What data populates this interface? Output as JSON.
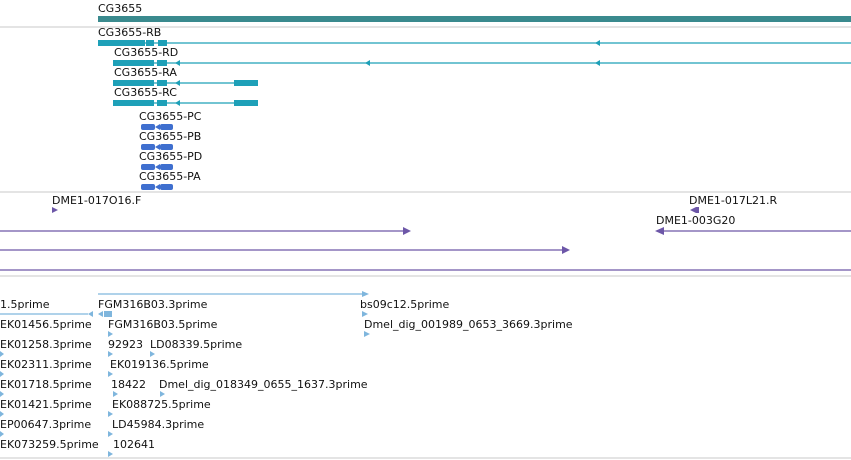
{
  "colors": {
    "gene": "#3a8a8e",
    "transcript": "#1ea0b8",
    "protein": "#3f6fcf",
    "bac": "#6d57a8",
    "est": "#7fb6dd",
    "separator": "#c9c9c9"
  },
  "tracks": {
    "gene": {
      "label": "CG3655"
    },
    "transcripts": [
      {
        "label": "CG3655-RB"
      },
      {
        "label": "CG3655-RD"
      },
      {
        "label": "CG3655-RA"
      },
      {
        "label": "CG3655-RC"
      }
    ],
    "proteins": [
      {
        "label": "CG3655-PC"
      },
      {
        "label": "CG3655-PB"
      },
      {
        "label": "CG3655-PD"
      },
      {
        "label": "CG3655-PA"
      }
    ],
    "bac_ends": [
      {
        "label": "DME1-017O16.F"
      },
      {
        "label": "DME1-017L21.R"
      },
      {
        "label": "DME1-003G20"
      }
    ],
    "ests": [
      {
        "label": "1.5prime"
      },
      {
        "label": "FGM316B03.3prime"
      },
      {
        "label": "bs09c12.5prime"
      },
      {
        "label": "EK01456.5prime"
      },
      {
        "label": "FGM316B03.5prime"
      },
      {
        "label": "Dmel_dig_001989_0653_3669.3prime"
      },
      {
        "label": "EK01258.3prime"
      },
      {
        "label": "92923"
      },
      {
        "label": "LD08339.5prime"
      },
      {
        "label": "EK02311.3prime"
      },
      {
        "label": "EK019136.5prime"
      },
      {
        "label": "EK01718.5prime"
      },
      {
        "label": "18422"
      },
      {
        "label": "Dmel_dig_018349_0655_1637.3prime"
      },
      {
        "label": "EK01421.5prime"
      },
      {
        "label": "EK088725.5prime"
      },
      {
        "label": "EP00647.3prime"
      },
      {
        "label": "LD45984.3prime"
      },
      {
        "label": "EK073259.5prime"
      },
      {
        "label": "102641"
      }
    ]
  }
}
